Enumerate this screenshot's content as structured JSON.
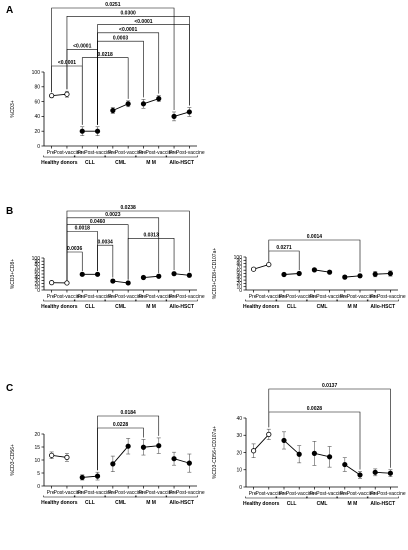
{
  "figure": {
    "panel_letters": [
      "A",
      "B",
      "C"
    ]
  },
  "group_labels": [
    "Healthy donors",
    "CLL",
    "CML",
    "M M",
    "Allo-HSCT"
  ],
  "tick_pre": "Pre",
  "tick_post": "Post-vaccine",
  "chart_data": [
    {
      "panel": "A",
      "type": "scatter",
      "ylabel": "%CD3+",
      "ylim": [
        0,
        100
      ],
      "yticks": [
        0,
        20,
        40,
        60,
        80,
        100
      ],
      "x": [
        "Pre",
        "Post-vaccine",
        "Pre",
        "Post-vaccine",
        "Pre",
        "Post-vaccine",
        "Pre",
        "Post-vaccine",
        "Pre",
        "Post-vaccine"
      ],
      "groups": [
        "Healthy donors",
        "CLL",
        "CML",
        "M M",
        "Allo-HSCT"
      ],
      "values": [
        68,
        70,
        20,
        20,
        48,
        57,
        57,
        64,
        40,
        46
      ],
      "errors": [
        2,
        4,
        6,
        6,
        4,
        4,
        6,
        4,
        6,
        6
      ],
      "open_markers": [
        true,
        true,
        false,
        false,
        false,
        false,
        false,
        false,
        false,
        false
      ],
      "annotations": [
        {
          "label": "<0.0001",
          "from": 0,
          "to": 2
        },
        {
          "label": "0.0218",
          "from": 2,
          "to": 5
        },
        {
          "label": "<0.0001",
          "from": 1,
          "to": 3
        },
        {
          "label": "0.0003",
          "from": 3,
          "to": 6
        },
        {
          "label": "<0.0001",
          "from": 3,
          "to": 7
        },
        {
          "label": "<0.0001",
          "from": 3,
          "to": 9
        },
        {
          "label": "0.0300",
          "from": 1,
          "to": 9
        },
        {
          "label": "0.0251",
          "from": 0,
          "to": 8
        }
      ]
    },
    {
      "panel": "B-left",
      "type": "scatter",
      "ylabel": "%CD3+CD8+",
      "ylim": [
        0,
        100
      ],
      "yticks": [
        0,
        10,
        20,
        30,
        40,
        50,
        60,
        70,
        80,
        90,
        100
      ],
      "x": [
        "Pre",
        "Post-vaccine",
        "Pre",
        "Post-vaccine",
        "Pre",
        "Post-vaccine",
        "Pre",
        "Post-vaccine",
        "Pre",
        "Post-vaccine"
      ],
      "groups": [
        "Healthy donors",
        "CLL",
        "CML",
        "M M",
        "Allo-HSCT"
      ],
      "values": [
        23,
        22,
        49,
        49,
        28,
        22,
        39,
        43,
        51,
        46
      ],
      "errors": [
        2,
        2,
        4,
        4,
        5,
        4,
        4,
        4,
        5,
        5
      ],
      "open_markers": [
        true,
        true,
        false,
        false,
        false,
        false,
        false,
        false,
        false,
        false
      ],
      "annotations": [
        {
          "label": "0.0036",
          "from": 1,
          "to": 2
        },
        {
          "label": "0.0034",
          "from": 3,
          "to": 4
        },
        {
          "label": "0.0313",
          "from": 5,
          "to": 8
        },
        {
          "label": "0.0018",
          "from": 1,
          "to": 3
        },
        {
          "label": "0.0460",
          "from": 1,
          "to": 5
        },
        {
          "label": "0.0023",
          "from": 1,
          "to": 7
        },
        {
          "label": "0.0238",
          "from": 1,
          "to": 9
        }
      ]
    },
    {
      "panel": "B-right",
      "type": "scatter",
      "ylabel": "%CD3+CD8+CD107a+",
      "ylim": [
        0,
        100
      ],
      "yticks": [
        0,
        10,
        20,
        30,
        40,
        50,
        60,
        70,
        80,
        90,
        100
      ],
      "x": [
        "Pre",
        "Post-vaccine",
        "Pre",
        "Post-vaccine",
        "Pre",
        "Post-vaccine",
        "Pre",
        "Post-vaccine",
        "Pre",
        "Post-vaccine"
      ],
      "groups": [
        "Healthy donors",
        "CLL",
        "CML",
        "M M",
        "Allo-HSCT"
      ],
      "values": [
        63,
        77,
        47,
        50,
        61,
        54,
        39,
        43,
        48,
        50
      ],
      "errors": [
        4,
        2,
        4,
        4,
        5,
        5,
        5,
        5,
        8,
        8
      ],
      "open_markers": [
        true,
        true,
        false,
        false,
        false,
        false,
        false,
        false,
        false,
        false
      ],
      "annotations": [
        {
          "label": "0.0271",
          "from": 1,
          "to": 3
        },
        {
          "label": "0.0014",
          "from": 1,
          "to": 7
        }
      ]
    },
    {
      "panel": "C-left",
      "type": "scatter",
      "ylabel": "%CD3-CD56+",
      "ylim": [
        0,
        20
      ],
      "yticks": [
        0,
        5,
        10,
        15,
        20
      ],
      "x": [
        "Pre",
        "Post-vaccine",
        "Pre",
        "Post-vaccine",
        "Pre",
        "Post-vaccine",
        "Pre",
        "Post-vaccine",
        "Pre",
        "Post-vaccine"
      ],
      "groups": [
        "Healthy donors",
        "CLL",
        "CML",
        "M M",
        "Allo-HSCT"
      ],
      "values": [
        11.8,
        11.0,
        3.3,
        3.8,
        8.5,
        15.3,
        14.9,
        15.5,
        10.5,
        8.8
      ],
      "errors": [
        1.3,
        1.5,
        1.0,
        1.5,
        3.0,
        3.0,
        3.0,
        3.0,
        2.5,
        3.5
      ],
      "open_markers": [
        true,
        true,
        false,
        false,
        false,
        false,
        false,
        false,
        false,
        false
      ],
      "annotations": [
        {
          "label": "0.0228",
          "from": 3,
          "to": 6
        },
        {
          "label": "0.0184",
          "from": 3,
          "to": 7
        }
      ]
    },
    {
      "panel": "C-right",
      "type": "scatter",
      "ylabel": "%CD3-CD56+CD107a+",
      "ylim": [
        0,
        40
      ],
      "yticks": [
        0,
        10,
        20,
        30,
        40
      ],
      "x": [
        "Pre",
        "Post-vaccine",
        "Pre",
        "Post-vaccine",
        "Pre",
        "Post-vaccine",
        "Pre",
        "Post-vaccine",
        "Pre",
        "Post-vaccine"
      ],
      "groups": [
        "Healthy donors",
        "CLL",
        "CML",
        "M M",
        "Allo-HSCT"
      ],
      "values": [
        21,
        30.5,
        27,
        19,
        19.5,
        17.5,
        13,
        7,
        8.5,
        8
      ],
      "errors": [
        4,
        3,
        5,
        5,
        7,
        6,
        4,
        2,
        2,
        2
      ],
      "open_markers": [
        true,
        true,
        false,
        false,
        false,
        false,
        false,
        false,
        false,
        false
      ],
      "annotations": [
        {
          "label": "0.0028",
          "from": 1,
          "to": 7
        },
        {
          "label": "0.0137",
          "from": 1,
          "to": 9
        }
      ]
    }
  ]
}
